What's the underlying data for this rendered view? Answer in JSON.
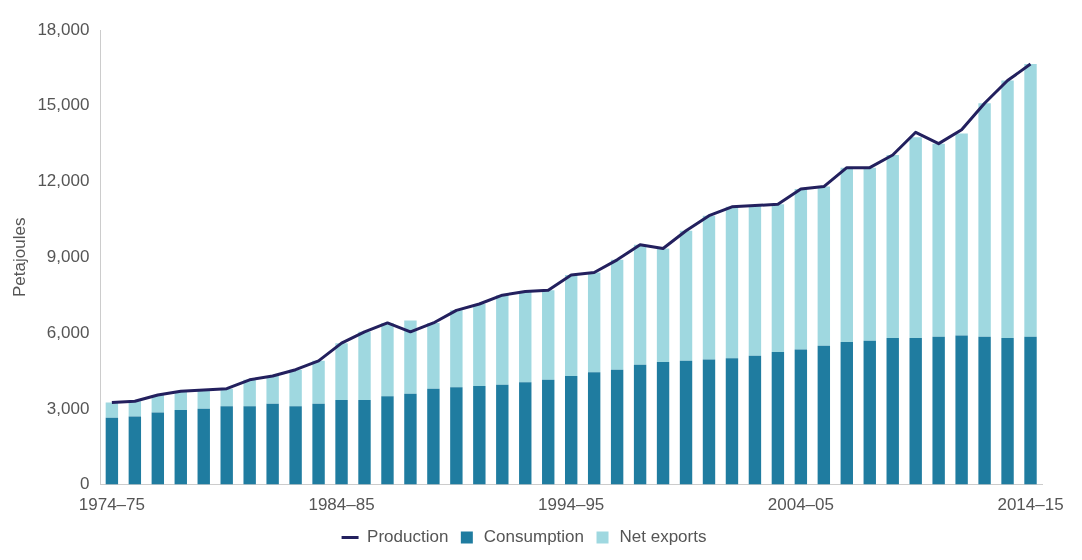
{
  "chart_data": {
    "type": "bar",
    "stacked": true,
    "ylabel": "Petajoules",
    "categories": [
      "1974–75",
      null,
      null,
      null,
      null,
      null,
      null,
      null,
      null,
      null,
      "1984–85",
      null,
      null,
      null,
      null,
      null,
      null,
      null,
      null,
      null,
      "1994–95",
      null,
      null,
      null,
      null,
      null,
      null,
      null,
      null,
      null,
      "2004–05",
      null,
      null,
      null,
      null,
      null,
      null,
      null,
      null,
      null,
      "2014–15"
    ],
    "series": [
      {
        "name": "Consumption",
        "color": "#1f7ca0",
        "values": [
          2650,
          2700,
          2850,
          2950,
          3000,
          3100,
          3100,
          3200,
          3100,
          3200,
          3350,
          3350,
          3500,
          3600,
          3800,
          3850,
          3900,
          3950,
          4050,
          4150,
          4300,
          4450,
          4550,
          4750,
          4850,
          4900,
          4950,
          5000,
          5100,
          5250,
          5350,
          5500,
          5650,
          5700,
          5800,
          5800,
          5850,
          5900,
          5850,
          5800,
          5850
        ]
      },
      {
        "name": "Net exports",
        "color": "#9fd8e0",
        "values": [
          600,
          600,
          700,
          750,
          750,
          700,
          1050,
          1100,
          1450,
          1700,
          2250,
          2700,
          2900,
          2900,
          2600,
          3050,
          3250,
          3550,
          3600,
          3550,
          4000,
          3950,
          4350,
          4750,
          4500,
          5150,
          5700,
          6000,
          5950,
          5850,
          6350,
          6300,
          6900,
          6850,
          7250,
          7950,
          7650,
          8000,
          9250,
          10200,
          10800
        ]
      },
      {
        "name": "Production",
        "type": "line",
        "color": "#23205e",
        "values": [
          3250,
          3300,
          3550,
          3700,
          3750,
          3800,
          4150,
          4300,
          4550,
          4900,
          5600,
          6050,
          6400,
          6050,
          6400,
          6900,
          7150,
          7500,
          7650,
          7700,
          8300,
          8400,
          8900,
          9500,
          9350,
          10050,
          10650,
          11000,
          11050,
          11100,
          11700,
          11800,
          12550,
          12550,
          13050,
          13950,
          13500,
          14050,
          15100,
          16000,
          16650
        ]
      }
    ],
    "ylim": [
      0,
      18000
    ],
    "yticks": [
      {
        "value": 0,
        "label": "0"
      },
      {
        "value": 3000,
        "label": "3,000"
      },
      {
        "value": 6000,
        "label": "6,000"
      },
      {
        "value": 9000,
        "label": "9,000"
      },
      {
        "value": 12000,
        "label": "12,000"
      },
      {
        "value": 15000,
        "label": "15,000"
      },
      {
        "value": 18000,
        "label": "18,000"
      }
    ],
    "grid": false,
    "legend": "bottom"
  }
}
